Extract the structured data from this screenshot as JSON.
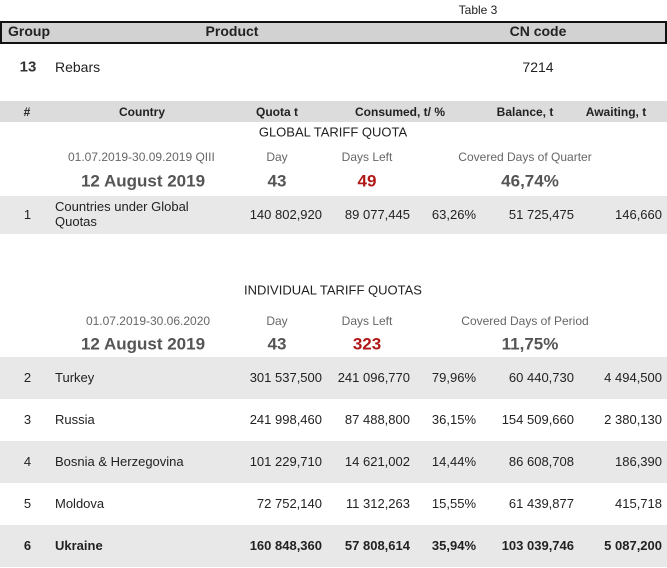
{
  "table_label": "Table 3",
  "header": {
    "group": "Group",
    "product": "Product",
    "cn_code": "CN code"
  },
  "product": {
    "group": "13",
    "name": "Rebars",
    "cn_code": "7214"
  },
  "columns": [
    "#",
    "Country",
    "Quota t",
    "Consumed, t/ %",
    "Balance, t",
    "Awaiting, t"
  ],
  "global": {
    "title": "GLOBAL TARIFF QUOTA",
    "period": "01.07.2019-30.09.2019  QIII",
    "day_label": "Day",
    "days_left_label": "Days Left",
    "covered_label": "Covered Days of Quarter",
    "date": "12 August 2019",
    "day": "43",
    "days_left": "49",
    "covered": "46,74%",
    "rows": [
      [
        "1",
        "Countries under Global Quotas",
        "140 802,920",
        "89 077,445",
        "63,26%",
        "51 725,475",
        "146,660"
      ]
    ]
  },
  "individual": {
    "title": "INDIVIDUAL TARIFF QUOTAS",
    "period": "01.07.2019-30.06.2020",
    "day_label": "Day",
    "days_left_label": "Days Left",
    "covered_label": "Covered Days of Period",
    "date": "12 August 2019",
    "day": "43",
    "days_left": "323",
    "covered": "11,75%",
    "rows": [
      [
        "2",
        "Turkey",
        "301 537,500",
        "241 096,770",
        "79,96%",
        "60 440,730",
        "4 494,500"
      ],
      [
        "3",
        "Russia",
        "241 998,460",
        "87 488,800",
        "36,15%",
        "154 509,660",
        "2 380,130"
      ],
      [
        "4",
        "Bosnia & Herzegovina",
        "101 229,710",
        "14 621,002",
        "14,44%",
        "86 608,708",
        "186,390"
      ],
      [
        "5",
        "Moldova",
        "72 752,140",
        "11 312,263",
        "15,55%",
        "61 439,877",
        "415,718"
      ],
      [
        "6",
        "Ukraine",
        "160 848,360",
        "57 808,614",
        "35,94%",
        "103 039,746",
        "5 087,200"
      ]
    ]
  }
}
